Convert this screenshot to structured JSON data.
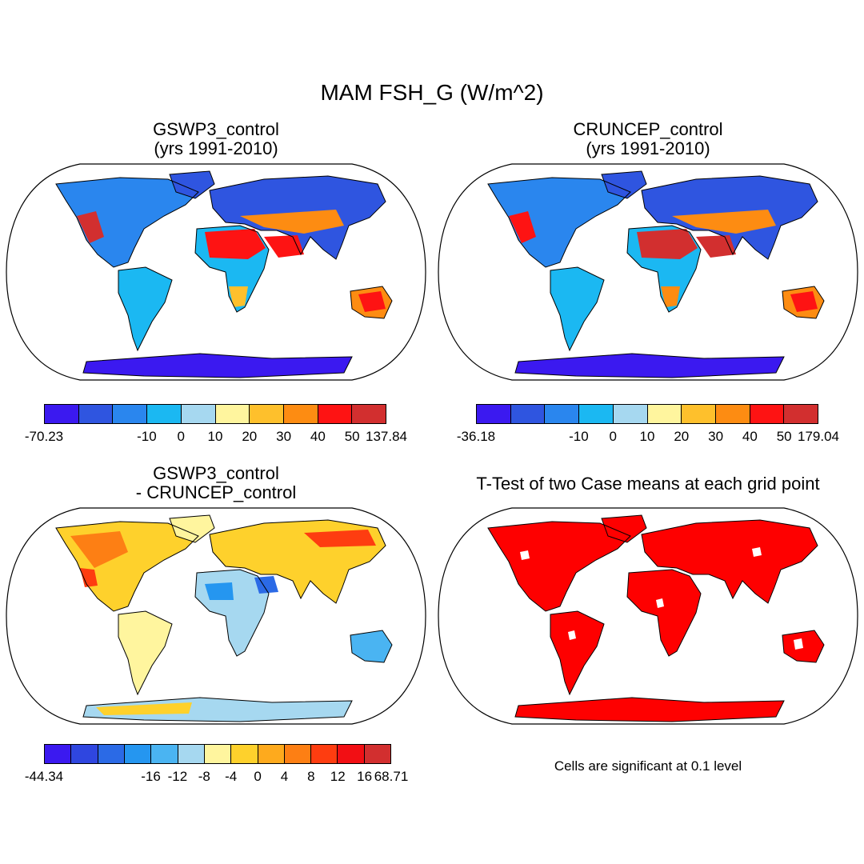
{
  "title": "MAM FSH_G (W/m^2)",
  "colors": {
    "mean": [
      "#3b19f0",
      "#2f55e0",
      "#2a86ee",
      "#1bb8f2",
      "#a6d8f0",
      "#fff59e",
      "#fec02c",
      "#fd8c12",
      "#fe1313",
      "#d22f2f"
    ],
    "diff": [
      "#3b19f0",
      "#2f46e0",
      "#2b6ae6",
      "#2596f0",
      "#4ab4f2",
      "#a6d8f0",
      "#fff59e",
      "#fed12c",
      "#feaa1d",
      "#fd7f14",
      "#fe3d10",
      "#f20f14",
      "#d22f2f"
    ],
    "sig": "#fe0000",
    "land_border": "#000000"
  },
  "panels": [
    {
      "id": "gswp3",
      "title": "GSWP3_control\n(yrs 1991-2010)",
      "colorbar": {
        "palette": "mean",
        "labels": [
          "-70.23",
          "-10",
          "0",
          "10",
          "20",
          "30",
          "40",
          "50",
          "137.84"
        ]
      }
    },
    {
      "id": "cruncep",
      "title": "CRUNCEP_control\n(yrs 1991-2010)",
      "colorbar": {
        "palette": "mean",
        "labels": [
          "-36.18",
          "-10",
          "0",
          "10",
          "20",
          "30",
          "40",
          "50",
          "179.04"
        ]
      }
    },
    {
      "id": "diff",
      "title": "GSWP3_control\n- CRUNCEP_control",
      "colorbar": {
        "palette": "diff",
        "labels": [
          "-44.34",
          "-16",
          "-12",
          "-8",
          "-4",
          "0",
          "4",
          "8",
          "12",
          "16",
          "68.71"
        ]
      }
    },
    {
      "id": "ttest",
      "title": "T-Test of two Case means at each grid point",
      "note": "Cells are significant at 0.1 level"
    }
  ]
}
